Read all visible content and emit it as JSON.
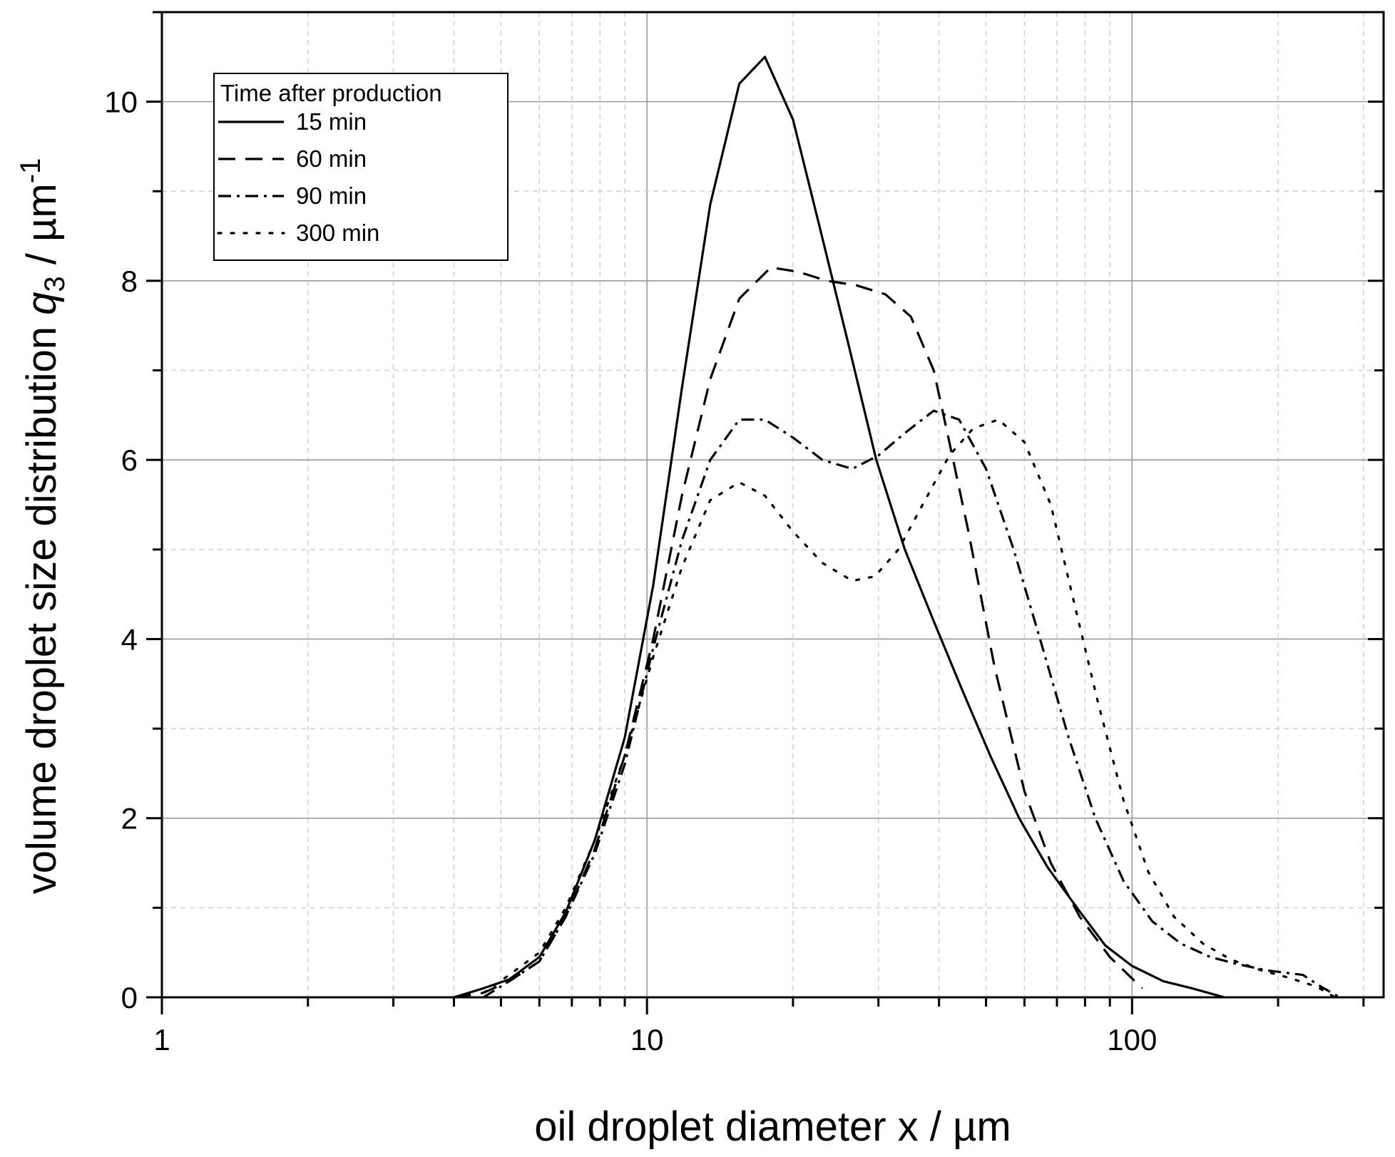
{
  "chart_data": {
    "type": "line",
    "xlabel": "oil droplet diameter x / µm",
    "ylabel": {
      "main": "volume droplet size distribution ",
      "q": "q",
      "q_sub": "3",
      "unit": " / µm",
      "unit_sup": "-1"
    },
    "x_scale": "log",
    "xlim": [
      1,
      330
    ],
    "ylim": [
      0,
      11
    ],
    "x_ticks": [
      {
        "value": 1,
        "label": "1"
      },
      {
        "value": 10,
        "label": "10"
      },
      {
        "value": 100,
        "label": "100"
      }
    ],
    "y_ticks": [
      {
        "value": 0,
        "label": "0"
      },
      {
        "value": 2,
        "label": "2"
      },
      {
        "value": 4,
        "label": "4"
      },
      {
        "value": 6,
        "label": "6"
      },
      {
        "value": 8,
        "label": "8"
      },
      {
        "value": 10,
        "label": "10"
      }
    ],
    "grid": true,
    "legend": {
      "title": "Time after production",
      "placement": "top-left"
    },
    "series": [
      {
        "name": "15 min",
        "style": "solid",
        "x": [
          4.0,
          4.6,
          5.2,
          6.0,
          6.8,
          7.8,
          9.0,
          10.3,
          11.8,
          13.5,
          15.5,
          17.5,
          20.0,
          22.7,
          26.0,
          29.7,
          34.0,
          39.0,
          44.5,
          51.0,
          58.5,
          67.0,
          77.0,
          88.0,
          100.0,
          116.0,
          133.0,
          155.0
        ],
        "y": [
          0.0,
          0.1,
          0.2,
          0.45,
          0.95,
          1.75,
          2.9,
          4.6,
          6.8,
          8.85,
          10.2,
          10.5,
          9.8,
          8.6,
          7.3,
          6.0,
          5.0,
          4.2,
          3.45,
          2.7,
          2.0,
          1.45,
          1.0,
          0.58,
          0.35,
          0.18,
          0.1,
          0.0
        ]
      },
      {
        "name": "60 min",
        "style": "dashed",
        "x": [
          4.0,
          4.6,
          5.2,
          6.0,
          6.8,
          7.8,
          9.0,
          10.3,
          11.8,
          13.5,
          15.5,
          18.0,
          20.5,
          23.5,
          27.0,
          31.0,
          35.0,
          39.0,
          42.0,
          46.0,
          52.0,
          60.0,
          68.0,
          78.0,
          90.0,
          105.0
        ],
        "y": [
          0.0,
          0.05,
          0.18,
          0.4,
          0.9,
          1.65,
          2.7,
          4.0,
          5.6,
          6.9,
          7.8,
          8.15,
          8.1,
          8.0,
          7.95,
          7.85,
          7.6,
          7.0,
          6.2,
          5.2,
          3.7,
          2.3,
          1.5,
          0.9,
          0.45,
          0.1
        ]
      },
      {
        "name": "90 min",
        "style": "dashdot",
        "x": [
          4.6,
          5.2,
          6.0,
          6.8,
          7.8,
          9.0,
          10.3,
          11.8,
          13.5,
          15.5,
          17.5,
          20.0,
          23.0,
          26.5,
          30.0,
          34.0,
          39.0,
          44.0,
          50.0,
          57.0,
          65.0,
          74.0,
          84.0,
          96.0,
          110.0,
          126.0,
          145.0,
          165.0,
          190.0,
          225.0,
          245.0,
          268.0
        ],
        "y": [
          0.0,
          0.18,
          0.4,
          0.9,
          1.6,
          2.6,
          3.9,
          5.1,
          6.0,
          6.45,
          6.45,
          6.25,
          6.0,
          5.9,
          6.05,
          6.3,
          6.55,
          6.45,
          5.9,
          5.0,
          3.95,
          2.9,
          2.0,
          1.3,
          0.85,
          0.6,
          0.45,
          0.37,
          0.3,
          0.25,
          0.12,
          0.0
        ]
      },
      {
        "name": "300 min",
        "style": "dotted",
        "x": [
          4.6,
          5.2,
          6.0,
          6.8,
          7.8,
          9.0,
          10.3,
          11.8,
          13.5,
          15.5,
          17.5,
          20.0,
          23.0,
          26.5,
          29.5,
          33.0,
          37.0,
          42.0,
          47.0,
          53.0,
          60.0,
          68.0,
          76.0,
          85.0,
          96.0,
          108.0,
          122.0,
          140.0,
          160.0,
          185.0,
          210.0,
          240.0,
          262.0
        ],
        "y": [
          0.05,
          0.25,
          0.5,
          1.0,
          1.75,
          2.7,
          3.8,
          4.8,
          5.55,
          5.75,
          5.6,
          5.2,
          4.85,
          4.65,
          4.7,
          5.0,
          5.5,
          6.05,
          6.35,
          6.45,
          6.2,
          5.5,
          4.4,
          3.3,
          2.2,
          1.4,
          0.9,
          0.6,
          0.42,
          0.3,
          0.22,
          0.12,
          0.0
        ]
      }
    ]
  }
}
